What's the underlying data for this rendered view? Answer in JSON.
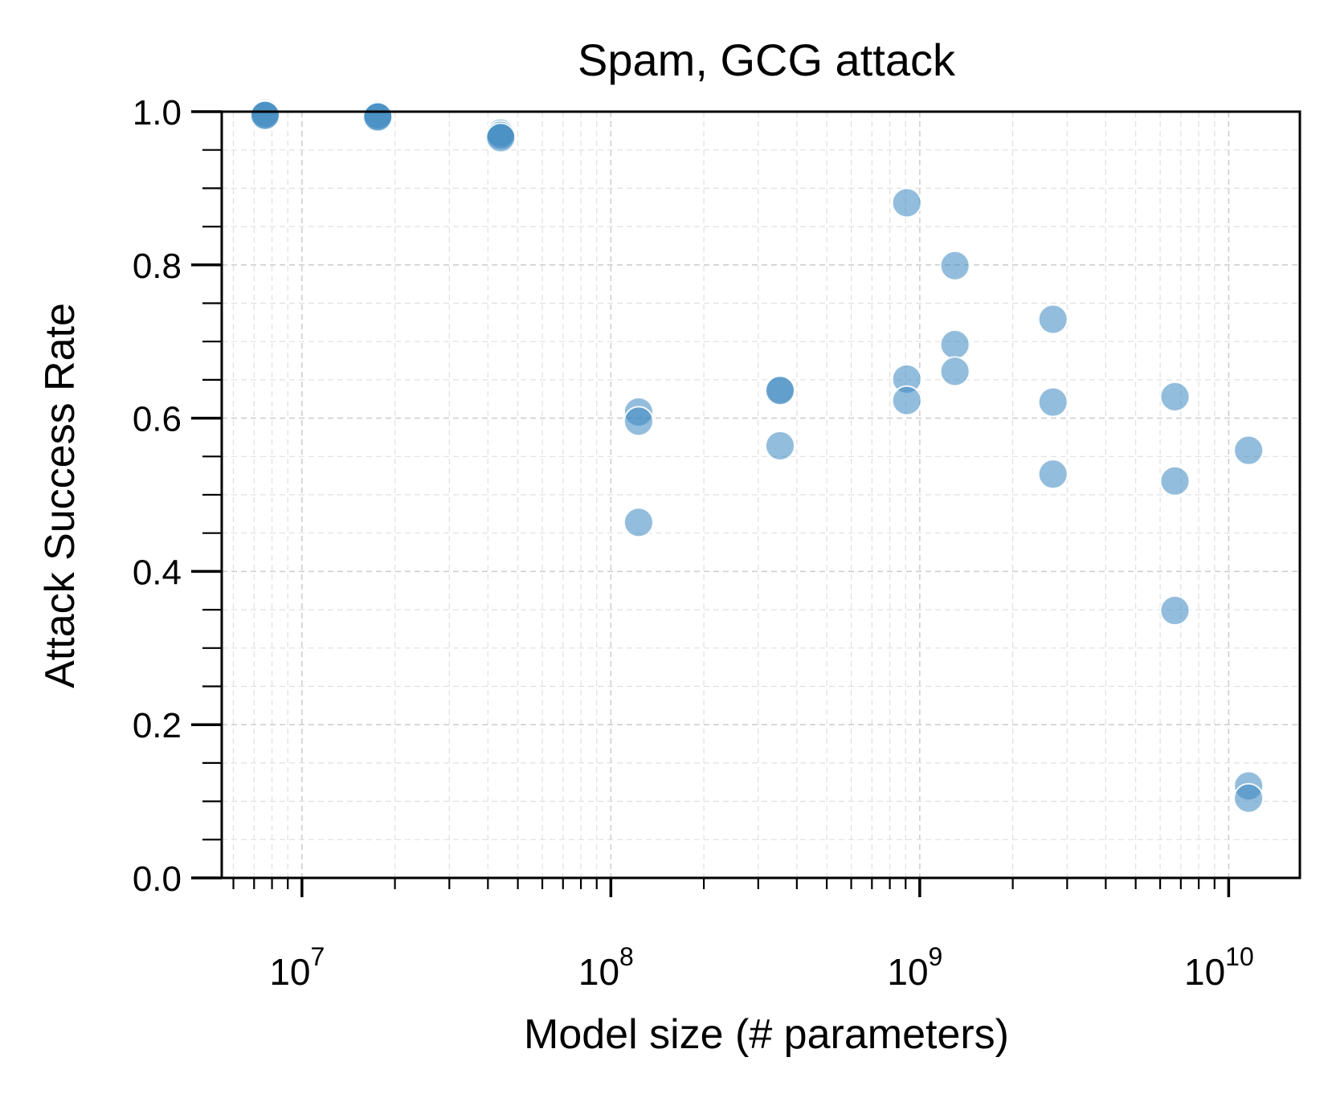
{
  "chart_data": {
    "type": "scatter",
    "title": "Spam, GCG attack",
    "xlabel": "Model size (# parameters)",
    "ylabel": "Attack Success Rate",
    "xscale": "log",
    "xlim": [
      5500000,
      17000000000
    ],
    "ylim": [
      0.0,
      1.0
    ],
    "grid": true,
    "legend": "none",
    "y_ticks": [
      "0.0",
      "0.2",
      "0.4",
      "0.6",
      "0.8",
      "1.0"
    ],
    "x_ticks": [
      {
        "value": 10000000,
        "base": "10",
        "exp": "7"
      },
      {
        "value": 100000000,
        "base": "10",
        "exp": "8"
      },
      {
        "value": 1000000000,
        "base": "10",
        "exp": "9"
      },
      {
        "value": 10000000000,
        "base": "10",
        "exp": "10"
      }
    ],
    "marker_color": "#3a86c0",
    "series": [
      {
        "points": [
          {
            "x": 7600000,
            "y": 0.998
          },
          {
            "x": 7600000,
            "y": 0.996
          },
          {
            "x": 7600000,
            "y": 0.995
          },
          {
            "x": 17600000,
            "y": 0.996
          },
          {
            "x": 17600000,
            "y": 0.994
          },
          {
            "x": 17600000,
            "y": 0.993
          },
          {
            "x": 44000000,
            "y": 0.972
          },
          {
            "x": 44000000,
            "y": 0.969
          },
          {
            "x": 44000000,
            "y": 0.966
          },
          {
            "x": 123000000,
            "y": 0.608
          },
          {
            "x": 123000000,
            "y": 0.596
          },
          {
            "x": 123000000,
            "y": 0.464
          },
          {
            "x": 353000000,
            "y": 0.637
          },
          {
            "x": 353000000,
            "y": 0.636
          },
          {
            "x": 353000000,
            "y": 0.564
          },
          {
            "x": 908000000,
            "y": 0.881
          },
          {
            "x": 908000000,
            "y": 0.651
          },
          {
            "x": 908000000,
            "y": 0.623
          },
          {
            "x": 1300000000,
            "y": 0.799
          },
          {
            "x": 1300000000,
            "y": 0.696
          },
          {
            "x": 1300000000,
            "y": 0.661
          },
          {
            "x": 2700000000,
            "y": 0.729
          },
          {
            "x": 2700000000,
            "y": 0.621
          },
          {
            "x": 2700000000,
            "y": 0.527
          },
          {
            "x": 6700000000,
            "y": 0.628
          },
          {
            "x": 6700000000,
            "y": 0.518
          },
          {
            "x": 6700000000,
            "y": 0.349
          },
          {
            "x": 11600000000,
            "y": 0.558
          },
          {
            "x": 11600000000,
            "y": 0.12
          },
          {
            "x": 11600000000,
            "y": 0.104
          }
        ]
      }
    ]
  }
}
